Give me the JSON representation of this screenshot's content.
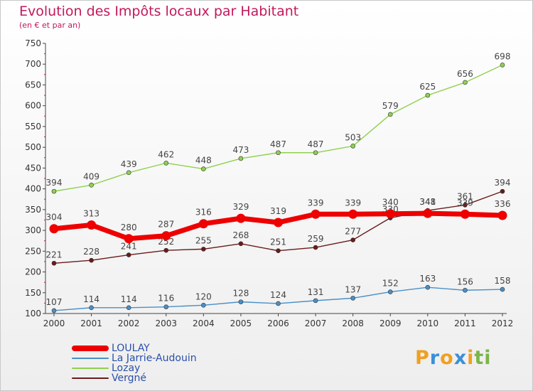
{
  "title": "Evolution des Impôts locaux par Habitant",
  "subtitle": "(en € et par an)",
  "logo": {
    "letters": [
      {
        "ch": "P",
        "color": "#f0a020"
      },
      {
        "ch": "r",
        "color": "#3a8fd8"
      },
      {
        "ch": "o",
        "color": "#f0a020"
      },
      {
        "ch": "x",
        "color": "#3a8fd8"
      },
      {
        "ch": "i",
        "color": "#f0a020"
      },
      {
        "ch": "t",
        "color": "#7ab648"
      },
      {
        "ch": "i",
        "color": "#7ab648"
      }
    ]
  },
  "chart_data": {
    "type": "line",
    "title": "Evolution des Impôts locaux par Habitant",
    "subtitle": "(en € et par an)",
    "x": [
      "2000",
      "2001",
      "2002",
      "2003",
      "2004",
      "2005",
      "2006",
      "2007",
      "2008",
      "2009",
      "2010",
      "2011",
      "2012"
    ],
    "yticks": [
      100,
      150,
      200,
      250,
      300,
      350,
      400,
      450,
      500,
      550,
      600,
      650,
      700,
      750
    ],
    "ylim": [
      100,
      750
    ],
    "grid": false,
    "legend_position": "bottom-left",
    "series": [
      {
        "name": "Lozay",
        "color": "#8fd14f",
        "values": [
          394,
          409,
          439,
          462,
          448,
          473,
          487,
          487,
          503,
          579,
          625,
          656,
          698
        ]
      },
      {
        "name": "Vergné",
        "color": "#6b1a1a",
        "values": [
          221,
          228,
          241,
          252,
          255,
          268,
          251,
          259,
          277,
          330,
          348,
          361,
          394
        ]
      },
      {
        "name": "La Jarrie-Audouin",
        "color": "#4a90c8",
        "values": [
          107,
          114,
          114,
          116,
          120,
          128,
          124,
          131,
          137,
          152,
          163,
          156,
          158
        ]
      },
      {
        "name": "LOULAY",
        "color": "#ee0000",
        "values": [
          304,
          313,
          280,
          287,
          316,
          329,
          319,
          339,
          339,
          340,
          341,
          339,
          336
        ]
      }
    ],
    "legend": [
      {
        "name": "LOULAY",
        "color": "#ee0000"
      },
      {
        "name": "La Jarrie-Audouin",
        "color": "#4a90c8"
      },
      {
        "name": "Lozay",
        "color": "#8fd14f"
      },
      {
        "name": "Vergné",
        "color": "#6b1a1a"
      }
    ]
  }
}
